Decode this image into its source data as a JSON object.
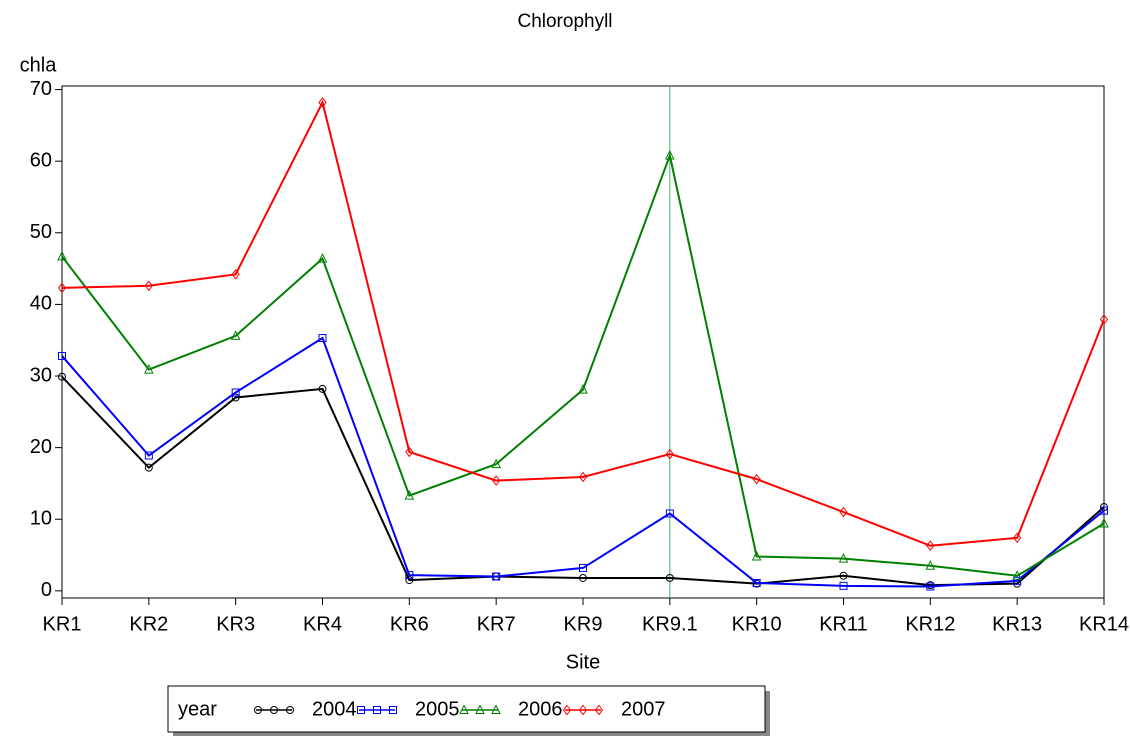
{
  "chart_data": {
    "type": "line",
    "title": "Chlorophyll",
    "y_label": "chla",
    "x_label": "Site",
    "categories": [
      "KR1",
      "KR2",
      "KR3",
      "KR4",
      "KR6",
      "KR7",
      "KR9",
      "KR9.1",
      "KR10",
      "KR11",
      "KR12",
      "KR13",
      "KR14"
    ],
    "series": [
      {
        "name": "2004",
        "color": "#000000",
        "marker": "circle",
        "values": [
          29.9,
          17.2,
          27,
          28.2,
          1.5,
          2,
          1.8,
          1.8,
          1,
          2.1,
          0.8,
          1,
          11.7
        ]
      },
      {
        "name": "2005",
        "color": "#0000ff",
        "marker": "square",
        "values": [
          32.8,
          18.9,
          27.7,
          35.3,
          2.2,
          2,
          3.2,
          10.8,
          1.1,
          0.7,
          0.6,
          1.4,
          11.2
        ]
      },
      {
        "name": "2006",
        "color": "#008000",
        "marker": "triangle",
        "values": [
          46.7,
          30.9,
          35.6,
          46.4,
          13.3,
          17.7,
          28.1,
          60.8,
          4.8,
          4.5,
          3.5,
          2.1,
          9.4
        ]
      },
      {
        "name": "2007",
        "color": "#ff0000",
        "marker": "diamond",
        "values": [
          42.3,
          42.6,
          44.2,
          68.2,
          19.4,
          15.4,
          15.9,
          19.1,
          15.6,
          11,
          6.3,
          7.4,
          37.9
        ]
      }
    ],
    "legend_title": "year",
    "ylim": [
      -1,
      70.5
    ],
    "yticks": [
      0,
      10,
      20,
      30,
      40,
      50,
      60,
      70
    ],
    "reference_line": {
      "x": "KR9.1",
      "color": "#3cb371"
    },
    "legend_position": "bottom"
  }
}
